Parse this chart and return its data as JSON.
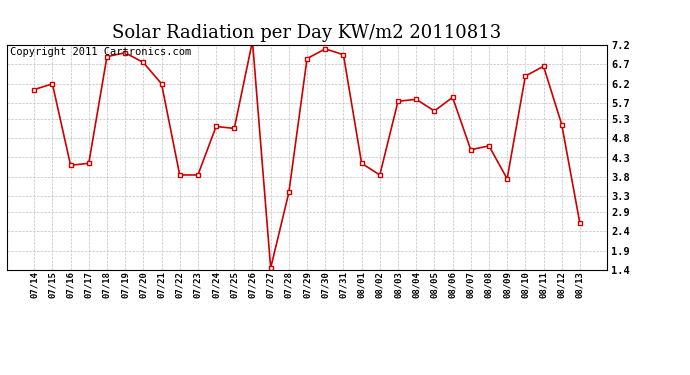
{
  "title": "Solar Radiation per Day KW/m2 20110813",
  "copyright_text": "Copyright 2011 Cartronics.com",
  "dates": [
    "07/14",
    "07/15",
    "07/16",
    "07/17",
    "07/18",
    "07/19",
    "07/20",
    "07/21",
    "07/22",
    "07/23",
    "07/24",
    "07/25",
    "07/26",
    "07/27",
    "07/28",
    "07/29",
    "07/30",
    "07/31",
    "08/01",
    "08/02",
    "08/03",
    "08/04",
    "08/05",
    "08/06",
    "08/07",
    "08/08",
    "08/09",
    "08/10",
    "08/11",
    "08/12",
    "08/13"
  ],
  "values": [
    6.05,
    6.2,
    4.1,
    4.15,
    6.9,
    7.0,
    6.75,
    6.2,
    3.85,
    3.85,
    5.1,
    5.05,
    7.3,
    1.45,
    3.4,
    6.85,
    7.1,
    6.95,
    4.15,
    3.85,
    5.75,
    5.8,
    5.5,
    5.85,
    4.5,
    4.6,
    3.75,
    6.4,
    6.65,
    5.15,
    2.6
  ],
  "yticks": [
    1.4,
    1.9,
    2.4,
    2.9,
    3.3,
    3.8,
    4.3,
    4.8,
    5.3,
    5.7,
    6.2,
    6.7,
    7.2
  ],
  "ylim": [
    1.4,
    7.2
  ],
  "line_color": "#cc0000",
  "marker_color": "#cc0000",
  "bg_color": "#ffffff",
  "grid_color": "#c0c0c0",
  "title_fontsize": 13,
  "copyright_fontsize": 7.5
}
